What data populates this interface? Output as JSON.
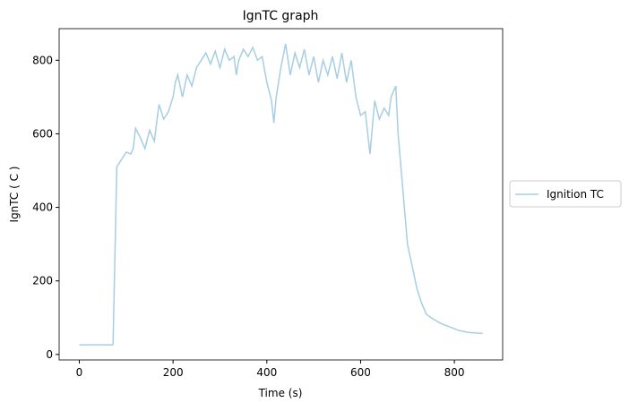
{
  "chart_data": {
    "type": "line",
    "title": "IgnTC graph",
    "x_label": "Time (s)",
    "y_label": "IgnTC ( C )",
    "x": [
      0,
      70,
      72,
      80,
      90,
      100,
      110,
      115,
      120,
      130,
      140,
      150,
      160,
      170,
      180,
      190,
      200,
      205,
      210,
      220,
      230,
      240,
      250,
      260,
      270,
      280,
      290,
      300,
      310,
      320,
      330,
      335,
      340,
      350,
      360,
      370,
      380,
      390,
      400,
      410,
      415,
      420,
      430,
      440,
      450,
      460,
      470,
      480,
      490,
      500,
      510,
      520,
      530,
      540,
      550,
      560,
      570,
      580,
      590,
      600,
      610,
      620,
      630,
      640,
      650,
      660,
      665,
      675,
      680,
      690,
      700,
      710,
      720,
      730,
      740,
      750,
      770,
      790,
      810,
      830,
      860
    ],
    "series": [
      {
        "name": "Ignition TC",
        "color": "#a6cee3",
        "values": [
          26,
          26,
          27,
          510,
          530,
          550,
          545,
          560,
          615,
          590,
          560,
          610,
          580,
          680,
          640,
          660,
          700,
          740,
          760,
          700,
          760,
          730,
          780,
          800,
          820,
          790,
          825,
          780,
          830,
          800,
          810,
          760,
          800,
          830,
          810,
          835,
          800,
          810,
          740,
          690,
          630,
          700,
          780,
          845,
          760,
          820,
          780,
          830,
          760,
          810,
          740,
          800,
          760,
          810,
          750,
          820,
          740,
          800,
          700,
          650,
          660,
          545,
          690,
          640,
          670,
          650,
          700,
          730,
          600,
          450,
          300,
          240,
          180,
          140,
          110,
          100,
          85,
          75,
          65,
          60,
          57
        ]
      }
    ],
    "xlim": [
      -43,
      903
    ],
    "ylim": [
      -15,
      886
    ],
    "xticks": [
      0,
      200,
      400,
      600,
      800
    ],
    "yticks": [
      0,
      200,
      400,
      600,
      800
    ],
    "legend": "outside right"
  }
}
